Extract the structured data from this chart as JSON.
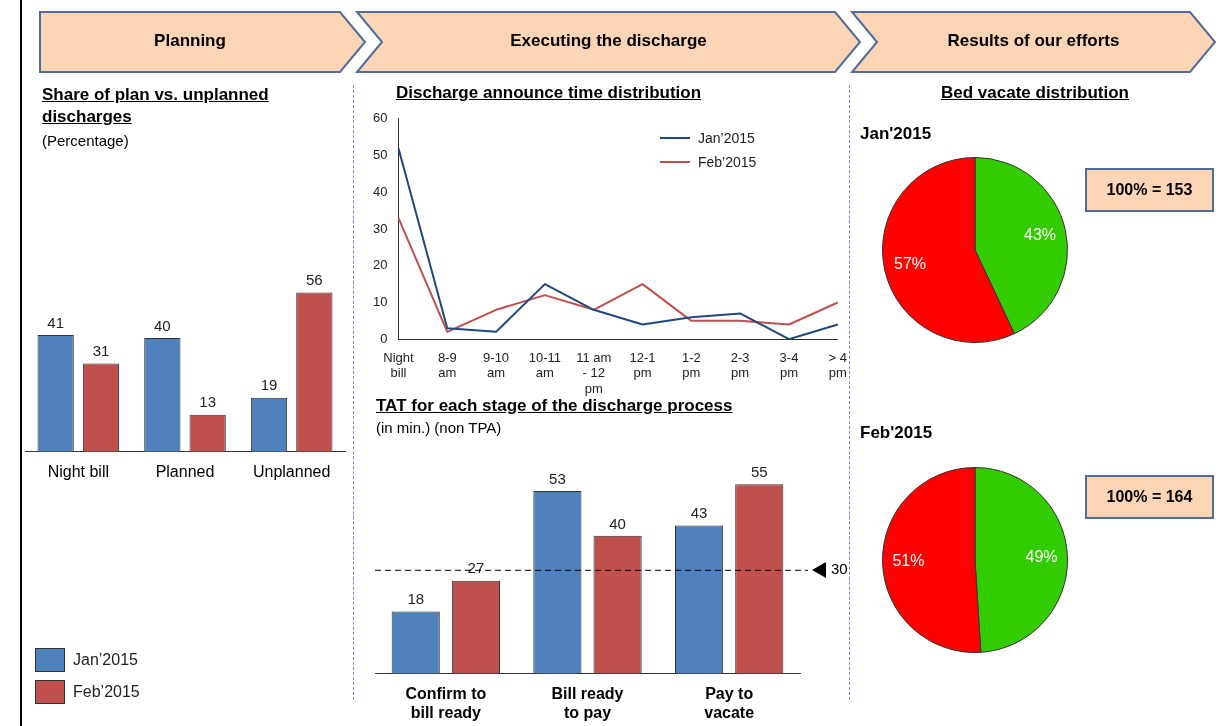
{
  "chart_data": [
    {
      "type": "bar",
      "title": "Share of plan vs. unplanned discharges",
      "subtitle": "(Percentage)",
      "annotations": [
        "Planning"
      ],
      "categories": [
        "Night bill",
        "Planned",
        "Unplanned"
      ],
      "series": [
        {
          "name": "Jan’2015",
          "color": "#4f81bd",
          "values": [
            41,
            40,
            19
          ]
        },
        {
          "name": "Feb’2015",
          "color": "#c0504d",
          "values": [
            31,
            13,
            56
          ]
        }
      ],
      "data_labels": true,
      "legend": "bottom left",
      "tick_labels": "x",
      "grid": false
    },
    {
      "type": "line",
      "title": "Discharge announce time distribution",
      "annotations": [
        "Executing the discharge"
      ],
      "categories": [
        "Night bill",
        "8-9 am",
        "9-10 am",
        "10-11 am",
        "11 am - 12 pm",
        "12-1 pm",
        "1-2 pm",
        "2-3 pm",
        "3-4 pm",
        "> 4 pm"
      ],
      "series": [
        {
          "name": "Jan’2015",
          "color": "#1f497d",
          "values": [
            52,
            3,
            2,
            15,
            8,
            4,
            6,
            7,
            0,
            4
          ]
        },
        {
          "name": "Feb’2015",
          "color": "#c0504d",
          "values": [
            33,
            2,
            8,
            12,
            8,
            15,
            5,
            5,
            4,
            10
          ]
        }
      ],
      "ylim": [
        0,
        60
      ],
      "yticks": [
        0,
        10,
        20,
        30,
        40,
        50,
        60
      ],
      "legend": "top right",
      "marker": "none",
      "line_style": "solid",
      "grid": false
    },
    {
      "type": "bar",
      "title": "TAT for each stage of the discharge process",
      "subtitle": "(in min.) (non TPA)",
      "categories": [
        "Confirm to bill ready",
        "Bill ready to pay",
        "Pay to vacate"
      ],
      "series": [
        {
          "color": "#4f81bd",
          "values": [
            18,
            53,
            43
          ]
        },
        {
          "color": "#c0504d",
          "values": [
            27,
            40,
            55
          ]
        }
      ],
      "ref_lines": [
        {
          "axis": "y",
          "value": 30,
          "label": "30",
          "color": "#000000",
          "line_style": "dashed"
        }
      ],
      "data_labels": true,
      "legend": false,
      "tick_labels": "x",
      "grid": false
    },
    {
      "type": "pie",
      "title": "Bed vacate distribution",
      "subtitle": "Jan'2015",
      "annotations": [
        "Results of our efforts",
        "100% = 153"
      ],
      "categories": [
        null,
        null
      ],
      "values": [
        43,
        57
      ],
      "colors": [
        "#33cc00",
        "#ff0000"
      ],
      "value_labels": [
        "43%",
        "57%"
      ],
      "legend": false
    },
    {
      "type": "pie",
      "title": "Feb'2015",
      "annotations": [
        "100% = 164"
      ],
      "categories": [
        null,
        null
      ],
      "values": [
        49,
        51
      ],
      "colors": [
        "#33cc00",
        "#ff0000"
      ],
      "value_labels": [
        "49%",
        "51%"
      ],
      "legend": false
    }
  ]
}
